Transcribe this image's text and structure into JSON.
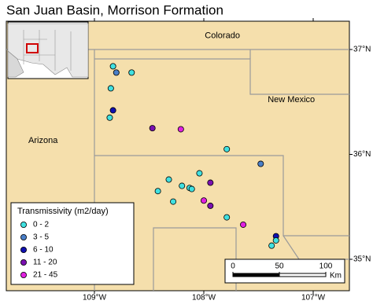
{
  "title": "San Juan Basin, Morrison Formation",
  "states": [
    {
      "label": "Colorado",
      "lon": -107.83,
      "lat": 37.13
    },
    {
      "label": "New Mexico",
      "lon": -107.2,
      "lat": 36.52
    },
    {
      "label": "Arizona",
      "lon": -109.47,
      "lat": 36.13
    }
  ],
  "lon_ticks": [
    {
      "value": -109,
      "label": "109°W"
    },
    {
      "value": -108,
      "label": "108°W"
    },
    {
      "value": -107,
      "label": "107°W"
    }
  ],
  "lat_ticks": [
    {
      "value": 37,
      "label": "37°N"
    },
    {
      "value": 36,
      "label": "36°N"
    },
    {
      "value": 35,
      "label": "35°N"
    }
  ],
  "legend": {
    "title": "Transmissivity (m2/day)",
    "classes": [
      {
        "label": "0 - 2",
        "color": "#40e0e0"
      },
      {
        "label": "3 - 5",
        "color": "#4a7fc8"
      },
      {
        "label": "6 - 10",
        "color": "#1010b0"
      },
      {
        "label": "11 - 20",
        "color": "#7a10b0"
      },
      {
        "label": "21 - 45",
        "color": "#e020e0"
      }
    ]
  },
  "points": [
    {
      "lon": -108.83,
      "lat": 36.84,
      "class": 0
    },
    {
      "lon": -108.8,
      "lat": 36.78,
      "class": 1
    },
    {
      "lon": -108.66,
      "lat": 36.78,
      "class": 0
    },
    {
      "lon": -108.85,
      "lat": 36.63,
      "class": 0
    },
    {
      "lon": -108.83,
      "lat": 36.42,
      "class": 2
    },
    {
      "lon": -108.86,
      "lat": 36.35,
      "class": 0
    },
    {
      "lon": -108.47,
      "lat": 36.25,
      "class": 3
    },
    {
      "lon": -108.21,
      "lat": 36.24,
      "class": 4
    },
    {
      "lon": -107.79,
      "lat": 36.05,
      "class": 0
    },
    {
      "lon": -107.48,
      "lat": 35.91,
      "class": 1
    },
    {
      "lon": -108.04,
      "lat": 35.82,
      "class": 0
    },
    {
      "lon": -108.32,
      "lat": 35.76,
      "class": 0
    },
    {
      "lon": -108.2,
      "lat": 35.7,
      "class": 0
    },
    {
      "lon": -108.13,
      "lat": 35.68,
      "class": 0
    },
    {
      "lon": -108.11,
      "lat": 35.67,
      "class": 0
    },
    {
      "lon": -107.94,
      "lat": 35.73,
      "class": 3
    },
    {
      "lon": -108.42,
      "lat": 35.65,
      "class": 0
    },
    {
      "lon": -108.0,
      "lat": 35.56,
      "class": 4
    },
    {
      "lon": -108.28,
      "lat": 35.55,
      "class": 0
    },
    {
      "lon": -107.94,
      "lat": 35.51,
      "class": 3
    },
    {
      "lon": -107.79,
      "lat": 35.4,
      "class": 0
    },
    {
      "lon": -107.64,
      "lat": 35.33,
      "class": 4
    },
    {
      "lon": -107.34,
      "lat": 35.22,
      "class": 2
    },
    {
      "lon": -107.34,
      "lat": 35.18,
      "class": 0
    },
    {
      "lon": -107.38,
      "lat": 35.13,
      "class": 0
    }
  ],
  "scale_bar": {
    "ticks": [
      0,
      50,
      100
    ],
    "unit": "Km"
  }
}
